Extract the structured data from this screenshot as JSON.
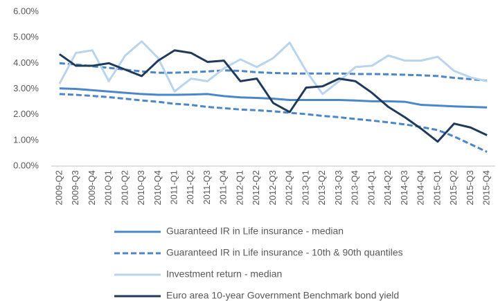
{
  "chart_data": {
    "type": "line",
    "categories": [
      "2009-Q2",
      "2009-Q3",
      "2009-Q4",
      "2010-Q1",
      "2010-Q2",
      "2010-Q3",
      "2010-Q4",
      "2011-Q1",
      "2011-Q2",
      "2011-Q3",
      "2011-Q4",
      "2012-Q1",
      "2012-Q2",
      "2012-Q3",
      "2012-Q4",
      "2013-Q1",
      "2013-Q2",
      "2013-Q3",
      "2013-Q4",
      "2014-Q1",
      "2014-Q2",
      "2014-Q3",
      "2014-Q4",
      "2015-Q1",
      "2015-Q2",
      "2015-Q3",
      "2015-Q4"
    ],
    "series": [
      {
        "name": "Guaranteed IR in Life insurance - median",
        "color": "#4a86c8",
        "dashed": false,
        "values": [
          3.02,
          3.0,
          2.95,
          2.9,
          2.85,
          2.8,
          2.77,
          2.77,
          2.78,
          2.8,
          2.72,
          2.67,
          2.65,
          2.62,
          2.57,
          2.57,
          2.57,
          2.57,
          2.55,
          2.52,
          2.52,
          2.5,
          2.38,
          2.35,
          2.32,
          2.3,
          2.28
        ]
      },
      {
        "name": "Guaranteed IR in Life insurance - 10th & 90th quantiles",
        "color": "#4a86c8",
        "dashed": true,
        "values": [
          4.0,
          3.95,
          3.88,
          3.82,
          3.75,
          3.68,
          3.63,
          3.63,
          3.65,
          3.68,
          3.72,
          3.7,
          3.65,
          3.62,
          3.6,
          3.6,
          3.6,
          3.6,
          3.58,
          3.58,
          3.57,
          3.55,
          3.53,
          3.5,
          3.43,
          3.38,
          3.32
        ]
      },
      {
        "color": "#4a86c8",
        "dashed": true,
        "values": [
          2.8,
          2.77,
          2.73,
          2.68,
          2.62,
          2.55,
          2.5,
          2.42,
          2.38,
          2.3,
          2.25,
          2.2,
          2.17,
          2.13,
          2.07,
          2.02,
          1.95,
          1.9,
          1.83,
          1.77,
          1.7,
          1.62,
          1.52,
          1.4,
          1.15,
          0.85,
          0.55
        ]
      },
      {
        "name": "Investment return - median",
        "color": "#b8d4ee",
        "dashed": false,
        "values": [
          3.2,
          4.4,
          4.5,
          3.3,
          4.3,
          4.85,
          4.2,
          2.9,
          3.4,
          3.3,
          3.8,
          4.15,
          3.85,
          4.2,
          4.8,
          3.7,
          2.8,
          3.3,
          3.85,
          3.9,
          4.3,
          4.1,
          4.1,
          4.25,
          3.7,
          3.45,
          3.3
        ]
      },
      {
        "name": "Euro area 10-year Government Benchmark bond yield",
        "color": "#1f3a5a",
        "dashed": false,
        "values": [
          4.35,
          3.9,
          3.9,
          4.0,
          3.75,
          3.5,
          4.1,
          4.5,
          4.4,
          4.05,
          4.1,
          3.3,
          3.4,
          2.45,
          2.1,
          3.05,
          3.1,
          3.4,
          3.3,
          2.85,
          2.3,
          1.9,
          1.45,
          0.95,
          1.65,
          1.5,
          1.2
        ]
      }
    ],
    "ylim": [
      0,
      6
    ],
    "yticks": [
      {
        "value": 0,
        "label": "0.00%"
      },
      {
        "value": 1,
        "label": "1.00%"
      },
      {
        "value": 2,
        "label": "2.00%"
      },
      {
        "value": 3,
        "label": "3.00%"
      },
      {
        "value": 4,
        "label": "4.00%"
      },
      {
        "value": 5,
        "label": "5.00%"
      },
      {
        "value": 6,
        "label": "6.00%"
      }
    ],
    "grid": false
  }
}
